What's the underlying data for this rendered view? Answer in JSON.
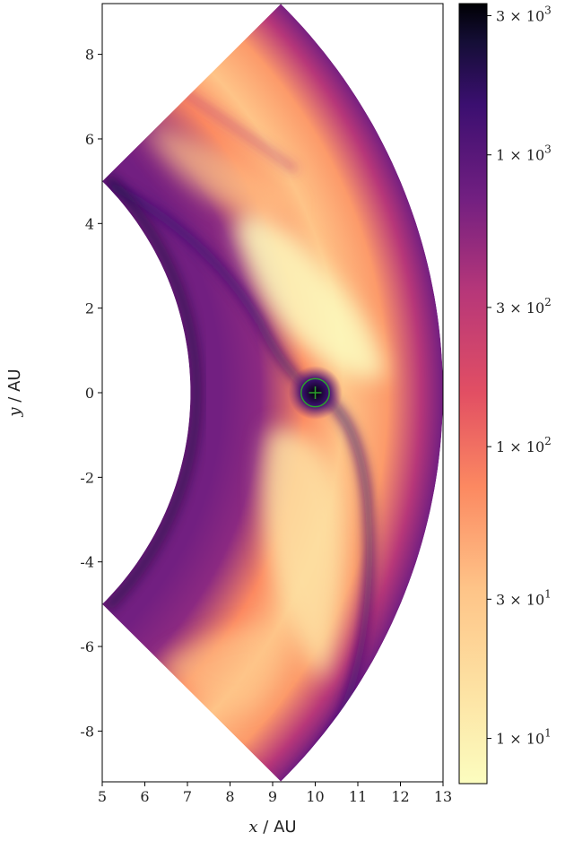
{
  "chart_data": {
    "type": "heatmap",
    "title": "",
    "xlabel_var": "x",
    "xlabel_unit": " / AU",
    "ylabel_var": "y",
    "ylabel_unit": " / AU",
    "xlim": [
      5,
      13
    ],
    "ylim": [
      -9.2,
      9.2
    ],
    "x_ticks": [
      5,
      6,
      7,
      8,
      9,
      10,
      11,
      12,
      13
    ],
    "x_tick_labels": [
      "5",
      "6",
      "7",
      "8",
      "9",
      "10",
      "11",
      "12",
      "13"
    ],
    "y_ticks": [
      8,
      6,
      4,
      2,
      0,
      -2,
      -4,
      -6,
      -8
    ],
    "y_tick_labels": [
      "8",
      "6",
      "4",
      "2",
      "0",
      "-2",
      "-4",
      "-6",
      "-8"
    ],
    "domain": {
      "r_inner": 7.07,
      "r_outer": 13,
      "phi_deg": [
        -45,
        45
      ]
    },
    "planet": {
      "x": 10,
      "y": 0,
      "marker": "+",
      "circle_radius": 0.3,
      "circle_color": "#2ca02c"
    },
    "colorbar": {
      "scale": "log",
      "range": [
        7,
        3300
      ],
      "colormap": "magma_r",
      "ticks": [
        10,
        30,
        100,
        300,
        1000,
        3000
      ],
      "tick_labels": [
        {
          "mant": "1",
          "exp": "1"
        },
        {
          "mant": "3",
          "exp": "1"
        },
        {
          "mant": "1",
          "exp": "2"
        },
        {
          "mant": "3",
          "exp": "2"
        },
        {
          "mant": "1",
          "exp": "3"
        },
        {
          "mant": "3",
          "exp": "3"
        }
      ]
    },
    "colors": {
      "c0": "#fcfdbf",
      "c1": "#fec488",
      "c2": "#fc8961",
      "c3": "#e24f63",
      "c4": "#b73779",
      "c5": "#721f81",
      "c6": "#3b0f70",
      "c7": "#150e37",
      "c8": "#000004"
    }
  }
}
